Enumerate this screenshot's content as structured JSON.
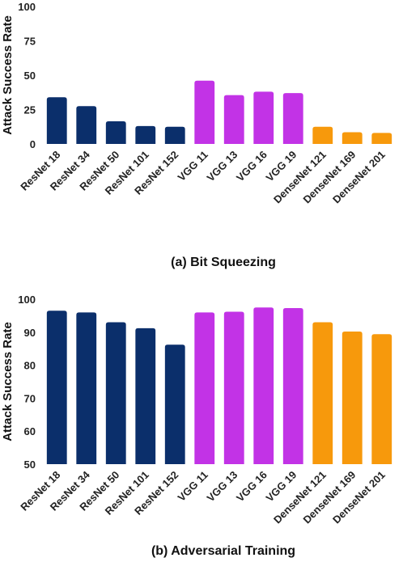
{
  "colors": {
    "resnet": "#0b2f6b",
    "vgg": "#c233e6",
    "densenet": "#f7990c"
  },
  "chart_data": [
    {
      "type": "bar",
      "caption": "(a) Bit Squeezing",
      "ylabel": "Attack Success Rate",
      "ylim": [
        0,
        100
      ],
      "yticks": [
        0,
        25,
        50,
        75,
        100
      ],
      "categories": [
        "ResNet 18",
        "ResNet 34",
        "ResNet 50",
        "ResNet 101",
        "ResNet 152",
        "VGG 11",
        "VGG 13",
        "VGG 16",
        "VGG 19",
        "DenseNet 121",
        "DenseNet 169",
        "DenseNet 201"
      ],
      "groups": [
        "resnet",
        "resnet",
        "resnet",
        "resnet",
        "resnet",
        "vgg",
        "vgg",
        "vgg",
        "vgg",
        "densenet",
        "densenet",
        "densenet"
      ],
      "values": [
        34,
        27.5,
        16.5,
        13,
        12.5,
        46,
        35.5,
        38,
        37,
        12.5,
        8.5,
        8
      ]
    },
    {
      "type": "bar",
      "caption": "(b) Adversarial Training",
      "ylabel": "Attack Success Rate",
      "ylim": [
        50,
        100
      ],
      "yticks": [
        50,
        60,
        70,
        80,
        90,
        100
      ],
      "categories": [
        "ResNet 18",
        "ResNet 34",
        "ResNet 50",
        "ResNet 101",
        "ResNet 152",
        "VGG 11",
        "VGG 13",
        "VGG 16",
        "VGG 19",
        "DenseNet 121",
        "DenseNet 169",
        "DenseNet 201"
      ],
      "groups": [
        "resnet",
        "resnet",
        "resnet",
        "resnet",
        "resnet",
        "vgg",
        "vgg",
        "vgg",
        "vgg",
        "densenet",
        "densenet",
        "densenet"
      ],
      "values": [
        96.5,
        96,
        93,
        91.2,
        86.2,
        96,
        96.2,
        97.5,
        97.3,
        93,
        90.2,
        89.4
      ]
    }
  ]
}
